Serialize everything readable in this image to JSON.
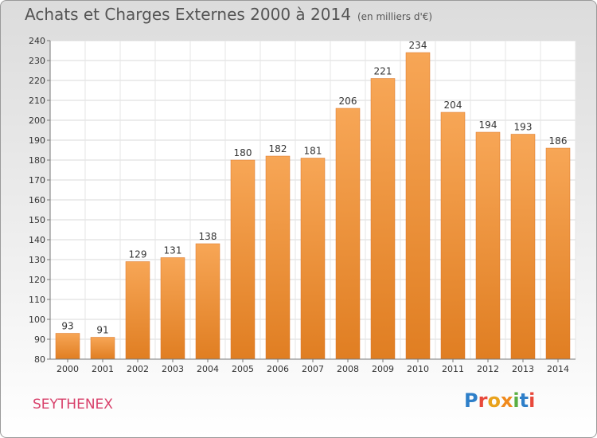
{
  "title": "Achats et Charges Externes 2000 à 2014",
  "subtitle": "(en milliers d'€)",
  "commune": "SEYTHENEX",
  "logo": {
    "text": "Proxiti",
    "colors": [
      "#2e7fc9",
      "#e8493b",
      "#e9a21c",
      "#f08a1d",
      "#5aae43",
      "#2e7fc9",
      "#e8493b"
    ]
  },
  "colors": {
    "bar_light": "#f7a656",
    "bar_dark": "#e07e22",
    "label": "#333333",
    "commune": "#d8416b"
  },
  "chart_data": {
    "type": "bar",
    "title": "Achats et Charges Externes 2000 à 2014",
    "subtitle": "(en milliers d'€)",
    "categories": [
      "2000",
      "2001",
      "2002",
      "2003",
      "2004",
      "2005",
      "2006",
      "2007",
      "2008",
      "2009",
      "2010",
      "2011",
      "2012",
      "2013",
      "2014"
    ],
    "values": [
      93,
      91,
      129,
      131,
      138,
      180,
      182,
      181,
      206,
      221,
      234,
      204,
      194,
      193,
      186
    ],
    "ylim": [
      80,
      240
    ],
    "yticks": [
      80,
      90,
      100,
      110,
      120,
      130,
      140,
      150,
      160,
      170,
      180,
      190,
      200,
      210,
      220,
      230,
      240
    ],
    "grid": true,
    "data_labels": true
  }
}
